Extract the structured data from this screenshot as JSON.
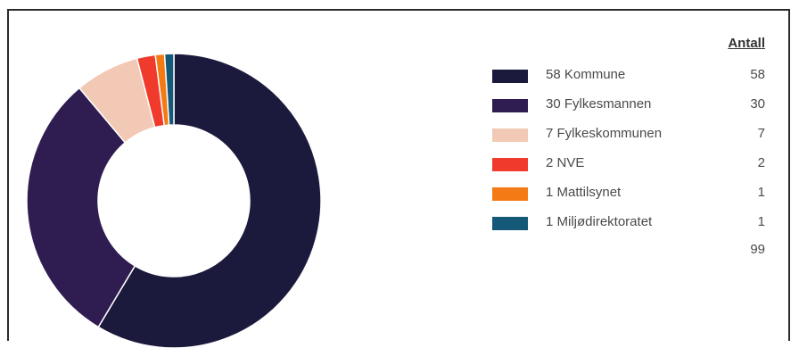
{
  "chart_data": {
    "type": "pie",
    "variant": "donut",
    "title": "",
    "legend_header": "Antall",
    "legend_placement": "right",
    "slices": [
      {
        "label": "58 Kommune",
        "name": "Kommune",
        "value": 58,
        "color": "#1b1a3d"
      },
      {
        "label": "30 Fylkesmannen",
        "name": "Fylkesmannen",
        "value": 30,
        "color": "#2f1d52"
      },
      {
        "label": "7 Fylkeskommunen",
        "name": "Fylkeskommunen",
        "value": 7,
        "color": "#f2c9b4"
      },
      {
        "label": "2 NVE",
        "name": "NVE",
        "value": 2,
        "color": "#ef3a2c"
      },
      {
        "label": "1 Mattilsynet",
        "name": "Mattilsynet",
        "value": 1,
        "color": "#f47a16"
      },
      {
        "label": "1 Miljødirektoratet",
        "name": "Miljødirektoratet",
        "value": 1,
        "color": "#145a78"
      }
    ],
    "total": 99
  }
}
